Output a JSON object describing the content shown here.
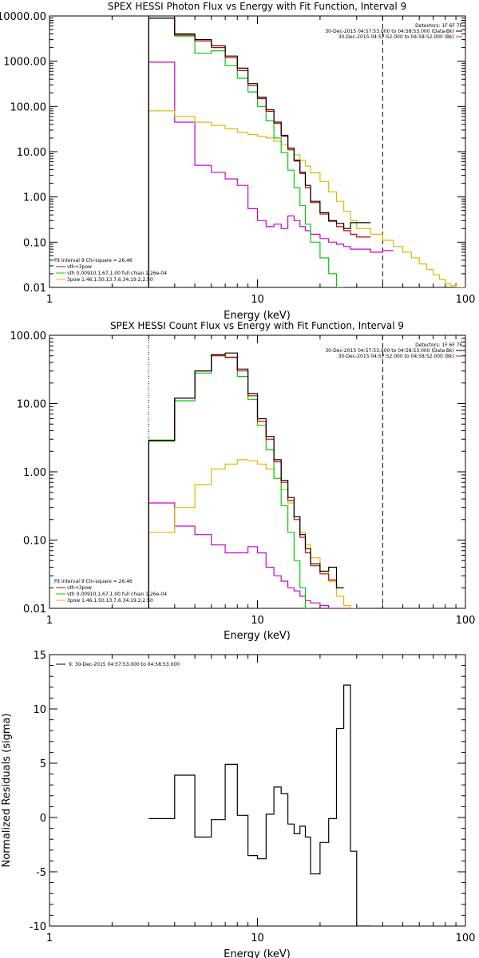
{
  "chart_data": [
    {
      "type": "line",
      "title": "SPEX HESSI Photon Flux vs Energy with Fit Function, Interval 9",
      "xlabel": "Energy (keV)",
      "ylabel": "",
      "xscale": "log",
      "yscale": "log",
      "xlim": [
        1,
        100
      ],
      "ylim": [
        0.01,
        10000
      ],
      "xticks": [
        "1",
        "10",
        "100"
      ],
      "yticks": [
        "0.01",
        "0.10",
        "1.00",
        "10.00",
        "100.00",
        "1000.00",
        "10000.00"
      ],
      "ytick_values": [
        0.01,
        0.1,
        1,
        10,
        100,
        1000,
        10000
      ],
      "dotted_vline": 3,
      "dashed_vline": 40,
      "legend_top": [
        {
          "text": "Detectors: 1F 6F 7F",
          "color": null
        },
        {
          "text": "30-Dec-2015 04:57:53.000 to 04:58:53.000 (Data-Bk)",
          "color": "#000000"
        },
        {
          "text": "30-Dec-2015 04:57:52.000 to 04:58:52.000 (Bk)",
          "color": "#cc00cc"
        }
      ],
      "legend_bottom": [
        {
          "text": "Fit Interval 9   Chi-square = 26.46",
          "color": null
        },
        {
          "text": "vth+3pow",
          "color": "#cc0000"
        },
        {
          "text": "vth 0.00910,1.67,1.00  full chian 1.26e-04",
          "color": "#00cc00"
        },
        {
          "text": "3pow 1.46,1.50,13.7,6.34,19.2,2.50",
          "color": "#ddbb00"
        }
      ],
      "edges": [
        3,
        4,
        5,
        6,
        7,
        8,
        9,
        10,
        11,
        12,
        13,
        14,
        15,
        16,
        17,
        18,
        20,
        22,
        24,
        26,
        28,
        30,
        35,
        40,
        45,
        50,
        55,
        60,
        65,
        70,
        75,
        80,
        85,
        90,
        95,
        100
      ],
      "series": [
        {
          "name": "Data-Bk",
          "color": "#000000",
          "values": [
            9000,
            4000,
            3000,
            2200,
            1300,
            700,
            320,
            160,
            85,
            45,
            23,
            12,
            6.5,
            3.5,
            1.8,
            0.8,
            0.45,
            0.3,
            0.26,
            0.2,
            0.27,
            0.27
          ]
        },
        {
          "name": "vth+3pow",
          "color": "#cc0000",
          "values": [
            9000,
            3800,
            2800,
            2000,
            1200,
            620,
            290,
            150,
            78,
            42,
            22,
            11,
            6.2,
            3.3,
            1.6,
            0.75,
            0.42,
            0.29,
            0.22,
            0.18,
            0.15,
            0.13
          ]
        },
        {
          "name": "vth",
          "color": "#00cc00",
          "values": [
            9000,
            3600,
            1500,
            1700,
            800,
            420,
            210,
            100,
            48,
            20,
            9.5,
            3.9,
            1.6,
            0.65,
            0.25,
            0.1,
            0.045,
            0.02,
            0.01,
            null,
            null,
            null
          ]
        },
        {
          "name": "3pow",
          "color": "#ddbb00",
          "values": [
            80,
            60,
            45,
            38,
            32,
            27,
            24,
            22,
            20,
            17,
            14,
            11,
            8.5,
            6.5,
            4.8,
            3.4,
            2.2,
            1.3,
            0.8,
            0.48,
            0.3,
            0.2,
            0.15,
            0.11,
            0.08,
            0.06,
            0.045,
            0.033,
            0.025,
            0.019,
            0.015,
            0.012,
            0.011,
            0.01,
            0.01
          ]
        },
        {
          "name": "Bk",
          "color": "#cc00cc",
          "values": [
            950,
            45,
            5,
            3.5,
            2.5,
            1.8,
            0.55,
            0.3,
            0.22,
            0.25,
            0.2,
            0.38,
            0.3,
            0.22,
            0.18,
            0.15,
            0.12,
            0.1,
            0.09,
            0.08,
            0.07,
            0.07,
            0.06,
            0.065
          ]
        }
      ]
    },
    {
      "type": "line",
      "title": "SPEX HESSI Count Flux vs Energy with Fit Function, Interval 9",
      "xlabel": "Energy (keV)",
      "ylabel": "",
      "xscale": "log",
      "yscale": "log",
      "xlim": [
        1,
        100
      ],
      "ylim": [
        0.01,
        100
      ],
      "xticks": [
        "1",
        "10",
        "100"
      ],
      "yticks": [
        "0.01",
        "0.10",
        "1.00",
        "10.00",
        "100.00"
      ],
      "ytick_values": [
        0.01,
        0.1,
        1,
        10,
        100
      ],
      "dotted_vline": 3,
      "dashed_vline": 40,
      "legend_top": [
        {
          "text": "Detectors: 1F 6F 7F",
          "color": null
        },
        {
          "text": "30-Dec-2015 04:57:53.000 to 04:58:53.000 (Data-Bk)",
          "color": "#000000"
        },
        {
          "text": "30-Dec-2015 04:57:52.000 to 04:58:52.000 (Bk)",
          "color": "#cc00cc"
        }
      ],
      "legend_bottom": [
        {
          "text": "Fit Interval 9   Chi-square = 26.46",
          "color": null
        },
        {
          "text": "vth+3pow",
          "color": "#cc0000"
        },
        {
          "text": "vth 0.00910,1.67,1.00  full chian 1.26e-04",
          "color": "#00cc00"
        },
        {
          "text": "3pow 1.46,1.50,13.7,6.34,19.2,2.50",
          "color": "#ddbb00"
        }
      ],
      "edges": [
        3,
        4,
        5,
        6,
        7,
        8,
        9,
        10,
        11,
        12,
        13,
        14,
        15,
        16,
        17,
        18,
        20,
        22,
        24,
        26,
        28,
        30,
        35,
        40,
        45,
        50
      ],
      "series": [
        {
          "name": "Data-Bk",
          "color": "#000000",
          "values": [
            2.9,
            12,
            30,
            52,
            55,
            32,
            14,
            6,
            3.3,
            1.5,
            0.75,
            0.42,
            0.22,
            0.12,
            0.075,
            0.045,
            0.035,
            0.04,
            0.02
          ]
        },
        {
          "name": "vth+3pow",
          "color": "#cc0000",
          "values": [
            2.9,
            12,
            30,
            50,
            48,
            30,
            13,
            5.5,
            3,
            1.4,
            0.7,
            0.38,
            0.2,
            0.11,
            0.065,
            0.042,
            0.032,
            0.026,
            0.02
          ]
        },
        {
          "name": "vth",
          "color": "#00cc00",
          "values": [
            2.8,
            11,
            28,
            52,
            47,
            25,
            11.5,
            4.8,
            2.1,
            0.8,
            0.32,
            0.13,
            0.05,
            0.02,
            0.01
          ]
        },
        {
          "name": "3pow",
          "color": "#ddbb00",
          "values": [
            0.13,
            0.3,
            0.65,
            1.1,
            1.3,
            1.5,
            1.45,
            1.3,
            1.1,
            0.8,
            0.55,
            0.35,
            0.22,
            0.13,
            0.085,
            0.055,
            0.035,
            0.025,
            0.015,
            0.011,
            0.01
          ]
        },
        {
          "name": "Bk",
          "color": "#cc00cc",
          "values": [
            0.35,
            0.16,
            0.12,
            0.085,
            0.065,
            0.065,
            0.08,
            0.065,
            0.04,
            0.03,
            0.025,
            0.02,
            0.018,
            0.015,
            0.013,
            0.012,
            0.011,
            0.01,
            0.01,
            0.01
          ]
        }
      ]
    },
    {
      "type": "line",
      "title": "",
      "xlabel": "Energy (keV)",
      "ylabel": "Normalized Residuals (sigma)",
      "xscale": "log",
      "yscale": "linear",
      "xlim": [
        1,
        100
      ],
      "ylim": [
        -10,
        15
      ],
      "xticks": [
        "1",
        "10",
        "100"
      ],
      "yticks": [
        "-10",
        "-5",
        "0",
        "5",
        "10",
        "15"
      ],
      "ytick_values": [
        -10,
        -5,
        0,
        5,
        10,
        15
      ],
      "legend_top": [
        {
          "text": "9: 30-Dec-2015 04:57:53.000 to 04:58:53.000",
          "color": "#000000"
        }
      ],
      "edges": [
        3,
        4,
        5,
        6,
        7,
        8,
        9,
        10,
        11,
        12,
        13,
        14,
        15,
        16,
        17,
        18,
        20,
        22,
        24,
        26,
        28,
        30,
        35,
        40
      ],
      "series": [
        {
          "name": "9: 30-Dec-2015 04:57:53.000 to 04:58:53.000",
          "color": "#000000",
          "values": [
            -0.1,
            3.9,
            -1.8,
            -0.2,
            4.9,
            0.2,
            -3.5,
            -3.8,
            0.3,
            2.8,
            2.2,
            -0.6,
            -1.5,
            -0.8,
            -1.8,
            -5.2,
            -2.3,
            -0.1,
            8.2,
            12.2,
            -3.1,
            -10
          ]
        }
      ]
    }
  ]
}
